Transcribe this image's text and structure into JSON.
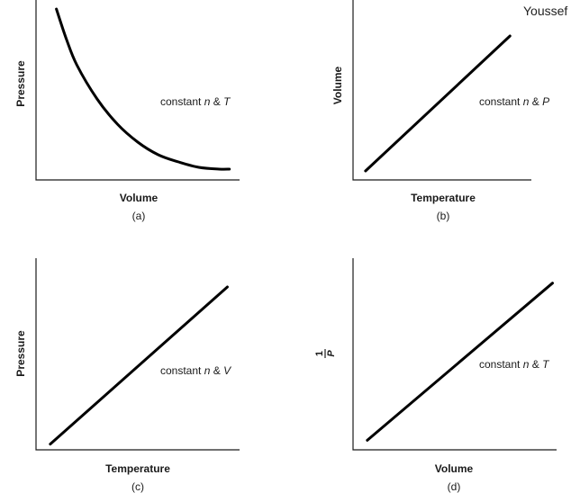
{
  "watermark": "Youssef",
  "chart_data": [
    {
      "type": "line",
      "panel": "(a)",
      "xlabel": "Volume",
      "ylabel": "Pressure",
      "annotation": {
        "prefix": "constant ",
        "var1": "n",
        "mid": " & ",
        "var2": "T"
      },
      "series": [
        {
          "x": [
            0.1,
            0.15,
            0.2,
            0.3,
            0.4,
            0.5,
            0.6,
            0.7,
            0.8,
            0.9,
            0.95
          ],
          "y": [
            0.95,
            0.78,
            0.64,
            0.45,
            0.31,
            0.21,
            0.14,
            0.1,
            0.07,
            0.06,
            0.06
          ]
        }
      ],
      "xlim": [
        0,
        1
      ],
      "ylim": [
        0,
        1
      ],
      "grid": false
    },
    {
      "type": "line",
      "panel": "(b)",
      "xlabel": "Temperature",
      "ylabel": "Volume",
      "annotation": {
        "prefix": "constant ",
        "var1": "n",
        "mid": " & ",
        "var2": "P"
      },
      "series": [
        {
          "x": [
            0.07,
            0.88
          ],
          "y": [
            0.05,
            0.8
          ]
        }
      ],
      "xlim": [
        0,
        1
      ],
      "ylim": [
        0,
        1
      ],
      "grid": false
    },
    {
      "type": "line",
      "panel": "(c)",
      "xlabel": "Temperature",
      "ylabel": "Pressure",
      "annotation": {
        "prefix": "constant ",
        "var1": "n",
        "mid": " & ",
        "var2": "V"
      },
      "series": [
        {
          "x": [
            0.07,
            0.94
          ],
          "y": [
            0.03,
            0.85
          ]
        }
      ],
      "xlim": [
        0,
        1
      ],
      "ylim": [
        0,
        1
      ],
      "grid": false
    },
    {
      "type": "line",
      "panel": "(d)",
      "xlabel": "Volume",
      "ylabel_num": "1",
      "ylabel_den": "P",
      "annotation": {
        "prefix": "constant ",
        "var1": "n",
        "mid": " & ",
        "var2": "T"
      },
      "series": [
        {
          "x": [
            0.07,
            0.98
          ],
          "y": [
            0.05,
            0.87
          ]
        }
      ],
      "xlim": [
        0,
        1
      ],
      "ylim": [
        0,
        1
      ],
      "grid": false
    }
  ]
}
